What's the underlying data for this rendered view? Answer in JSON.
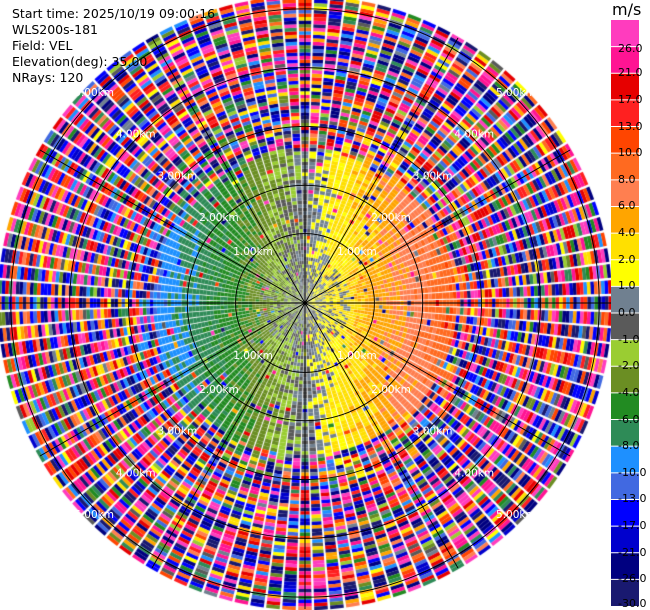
{
  "info": {
    "start_time": "Start time: 2025/10/19 09:00:16",
    "instrument": "WLS200s-181",
    "field": "Field: VEL",
    "elevation": "Elevation(deg): 35.00",
    "nrays": "NRays: 120"
  },
  "chart_data": {
    "type": "heatmap",
    "projection": "polar-ppi",
    "title": "",
    "field": "VEL",
    "rays": 120,
    "range_km": [
      0,
      5.2
    ],
    "range_rings_km": [
      1,
      2,
      3,
      4,
      5
    ],
    "ring_labels": [
      "1.00km",
      "2.00km",
      "3.00km",
      "4.00km",
      "5.00km"
    ],
    "azimuth_spokes_deg": [
      0,
      30,
      60,
      90,
      120,
      150,
      180,
      210,
      240,
      270,
      300,
      330
    ],
    "colorbar": {
      "unit": "m/s",
      "ticks": [
        "26.0",
        "21.0",
        "17.0",
        "13.0",
        "10.0",
        "8.0",
        "6.0",
        "4.0",
        "2.0",
        "1.0",
        "0.0",
        "-1.0",
        "-2.0",
        "-4.0",
        "-6.0",
        "-8.0",
        "-10.0",
        "-13.0",
        "-17.0",
        "-21.0",
        "-26.0",
        "-30.0"
      ],
      "boundaries": [
        30,
        26,
        21,
        17,
        13,
        10,
        8,
        6,
        4,
        2,
        1,
        0,
        -1,
        -2,
        -4,
        -6,
        -8,
        -10,
        -13,
        -17,
        -21,
        -26,
        -30
      ],
      "colors": [
        "#ff3cbe",
        "#ff1493",
        "#e60000",
        "#ff2020",
        "#ff4500",
        "#ff6a20",
        "#ff7f50",
        "#ffa500",
        "#ffe000",
        "#ffff00",
        "#708090",
        "#5a5a5a",
        "#9acd32",
        "#6b8e23",
        "#228b22",
        "#2e8b57",
        "#1e90ff",
        "#4169e1",
        "#0000ff",
        "#0000cd",
        "#000080",
        "#191970"
      ]
    },
    "wind_model": {
      "description_values_ms": {
        "max_speed": 10.0,
        "noise_start_km": 2.6
      },
      "colors_positive_side": "east",
      "colors_negative_side": "west"
    }
  }
}
